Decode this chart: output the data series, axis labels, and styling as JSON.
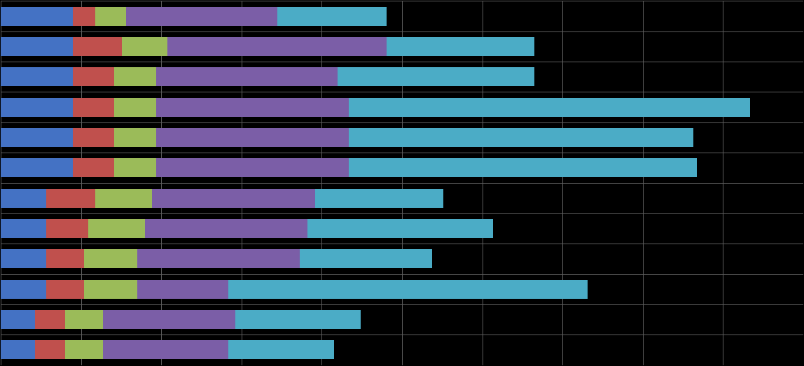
{
  "bars": [
    [
      95,
      30,
      40,
      200,
      145
    ],
    [
      95,
      65,
      60,
      290,
      195
    ],
    [
      95,
      55,
      55,
      240,
      260
    ],
    [
      95,
      55,
      55,
      255,
      530
    ],
    [
      95,
      55,
      55,
      255,
      455
    ],
    [
      95,
      55,
      55,
      255,
      460
    ],
    [
      60,
      65,
      75,
      215,
      170
    ],
    [
      60,
      55,
      75,
      215,
      245
    ],
    [
      60,
      50,
      70,
      215,
      175
    ],
    [
      60,
      50,
      70,
      120,
      475
    ],
    [
      45,
      40,
      50,
      175,
      165
    ],
    [
      45,
      40,
      50,
      165,
      140
    ]
  ],
  "colors": [
    "#4472C4",
    "#C0504D",
    "#9BBB59",
    "#7B5EA7",
    "#4BACC6"
  ],
  "background": "#000000",
  "bar_height": 0.62,
  "xlim_max": 1060,
  "n_gridlines": 10,
  "grid_color": "#606060",
  "grid_linewidth": 0.7,
  "border_color": "#606060"
}
